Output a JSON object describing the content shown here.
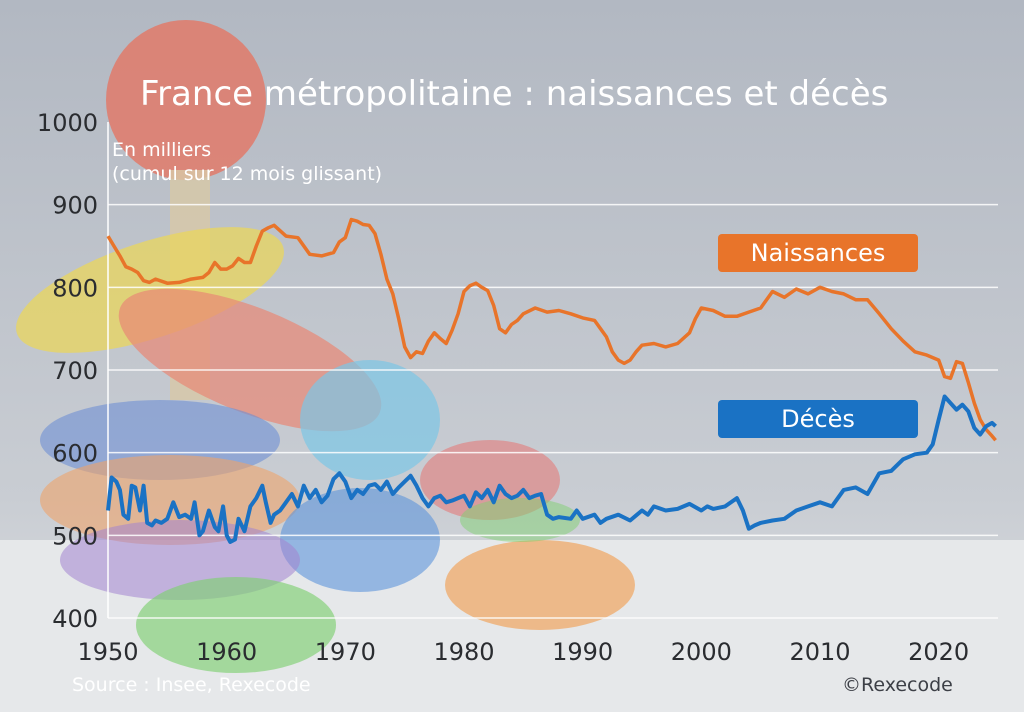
{
  "chart_data": {
    "type": "line",
    "title": "France métropolitaine : naissances et décès",
    "unit_label_line1": "En milliers",
    "unit_label_line2": "(cumul sur 12 mois glissant)",
    "xlim": [
      1950,
      2025
    ],
    "ylim": [
      400,
      1000
    ],
    "yticks": [
      1000,
      900,
      800,
      700,
      600,
      500,
      400
    ],
    "xticks": [
      1950,
      1960,
      1970,
      1980,
      1990,
      2000,
      2010,
      2020
    ],
    "grid": true,
    "series": [
      {
        "name": "Naissances",
        "color": "#e8742a",
        "points": [
          [
            1950.0,
            862
          ],
          [
            1950.5,
            850
          ],
          [
            1951.0,
            838
          ],
          [
            1951.5,
            825
          ],
          [
            1952.0,
            822
          ],
          [
            1952.5,
            818
          ],
          [
            1953.0,
            808
          ],
          [
            1953.5,
            806
          ],
          [
            1954.0,
            810
          ],
          [
            1955.0,
            805
          ],
          [
            1956.0,
            806
          ],
          [
            1957.0,
            810
          ],
          [
            1958.0,
            812
          ],
          [
            1958.5,
            818
          ],
          [
            1959.0,
            830
          ],
          [
            1959.5,
            822
          ],
          [
            1960.0,
            822
          ],
          [
            1960.5,
            826
          ],
          [
            1961.0,
            835
          ],
          [
            1961.5,
            830
          ],
          [
            1962.0,
            830
          ],
          [
            1962.5,
            850
          ],
          [
            1963.0,
            868
          ],
          [
            1963.5,
            872
          ],
          [
            1964.0,
            875
          ],
          [
            1965.0,
            862
          ],
          [
            1966.0,
            860
          ],
          [
            1967.0,
            840
          ],
          [
            1968.0,
            838
          ],
          [
            1969.0,
            842
          ],
          [
            1969.5,
            855
          ],
          [
            1970.0,
            860
          ],
          [
            1970.5,
            882
          ],
          [
            1971.0,
            880
          ],
          [
            1971.5,
            876
          ],
          [
            1972.0,
            875
          ],
          [
            1972.5,
            865
          ],
          [
            1973.0,
            840
          ],
          [
            1973.5,
            810
          ],
          [
            1974.0,
            792
          ],
          [
            1974.5,
            762
          ],
          [
            1975.0,
            728
          ],
          [
            1975.5,
            715
          ],
          [
            1976.0,
            722
          ],
          [
            1976.5,
            720
          ],
          [
            1977.0,
            735
          ],
          [
            1977.5,
            745
          ],
          [
            1978.0,
            738
          ],
          [
            1978.5,
            732
          ],
          [
            1979.0,
            748
          ],
          [
            1979.5,
            768
          ],
          [
            1980.0,
            795
          ],
          [
            1980.5,
            802
          ],
          [
            1981.0,
            805
          ],
          [
            1981.5,
            800
          ],
          [
            1982.0,
            796
          ],
          [
            1982.5,
            778
          ],
          [
            1983.0,
            750
          ],
          [
            1983.5,
            745
          ],
          [
            1984.0,
            755
          ],
          [
            1984.5,
            760
          ],
          [
            1985.0,
            768
          ],
          [
            1986.0,
            775
          ],
          [
            1987.0,
            770
          ],
          [
            1988.0,
            772
          ],
          [
            1989.0,
            768
          ],
          [
            1990.0,
            763
          ],
          [
            1991.0,
            760
          ],
          [
            1991.5,
            750
          ],
          [
            1992.0,
            740
          ],
          [
            1992.5,
            722
          ],
          [
            1993.0,
            712
          ],
          [
            1993.5,
            708
          ],
          [
            1994.0,
            712
          ],
          [
            1994.5,
            722
          ],
          [
            1995.0,
            730
          ],
          [
            1996.0,
            732
          ],
          [
            1997.0,
            728
          ],
          [
            1998.0,
            732
          ],
          [
            1999.0,
            745
          ],
          [
            1999.5,
            762
          ],
          [
            2000.0,
            775
          ],
          [
            2001.0,
            772
          ],
          [
            2002.0,
            765
          ],
          [
            2003.0,
            765
          ],
          [
            2004.0,
            770
          ],
          [
            2005.0,
            775
          ],
          [
            2006.0,
            795
          ],
          [
            2007.0,
            788
          ],
          [
            2008.0,
            798
          ],
          [
            2009.0,
            792
          ],
          [
            2010.0,
            800
          ],
          [
            2011.0,
            795
          ],
          [
            2012.0,
            792
          ],
          [
            2013.0,
            785
          ],
          [
            2014.0,
            785
          ],
          [
            2015.0,
            768
          ],
          [
            2016.0,
            750
          ],
          [
            2017.0,
            735
          ],
          [
            2018.0,
            722
          ],
          [
            2019.0,
            718
          ],
          [
            2020.0,
            712
          ],
          [
            2020.5,
            692
          ],
          [
            2021.0,
            690
          ],
          [
            2021.5,
            710
          ],
          [
            2022.0,
            708
          ],
          [
            2022.5,
            685
          ],
          [
            2023.0,
            660
          ],
          [
            2023.5,
            640
          ],
          [
            2024.0,
            628
          ],
          [
            2024.5,
            620
          ],
          [
            2024.8,
            615
          ]
        ]
      },
      {
        "name": "Décès",
        "color": "#1a72c4",
        "points": [
          [
            1950.0,
            530
          ],
          [
            1950.3,
            570
          ],
          [
            1950.7,
            565
          ],
          [
            1951.0,
            555
          ],
          [
            1951.3,
            525
          ],
          [
            1951.7,
            520
          ],
          [
            1952.0,
            560
          ],
          [
            1952.3,
            558
          ],
          [
            1952.7,
            530
          ],
          [
            1953.0,
            560
          ],
          [
            1953.3,
            515
          ],
          [
            1953.7,
            512
          ],
          [
            1954.0,
            518
          ],
          [
            1954.5,
            515
          ],
          [
            1955.0,
            520
          ],
          [
            1955.5,
            540
          ],
          [
            1956.0,
            522
          ],
          [
            1956.5,
            525
          ],
          [
            1957.0,
            520
          ],
          [
            1957.3,
            540
          ],
          [
            1957.7,
            500
          ],
          [
            1958.0,
            505
          ],
          [
            1958.5,
            530
          ],
          [
            1959.0,
            510
          ],
          [
            1959.3,
            505
          ],
          [
            1959.7,
            535
          ],
          [
            1960.0,
            500
          ],
          [
            1960.3,
            492
          ],
          [
            1960.7,
            495
          ],
          [
            1961.0,
            520
          ],
          [
            1961.5,
            505
          ],
          [
            1962.0,
            535
          ],
          [
            1962.5,
            545
          ],
          [
            1963.0,
            560
          ],
          [
            1963.3,
            540
          ],
          [
            1963.7,
            515
          ],
          [
            1964.0,
            525
          ],
          [
            1964.5,
            530
          ],
          [
            1965.0,
            540
          ],
          [
            1965.5,
            550
          ],
          [
            1966.0,
            535
          ],
          [
            1966.5,
            560
          ],
          [
            1967.0,
            545
          ],
          [
            1967.5,
            555
          ],
          [
            1968.0,
            540
          ],
          [
            1968.5,
            548
          ],
          [
            1969.0,
            568
          ],
          [
            1969.5,
            575
          ],
          [
            1970.0,
            565
          ],
          [
            1970.5,
            545
          ],
          [
            1971.0,
            555
          ],
          [
            1971.5,
            550
          ],
          [
            1972.0,
            560
          ],
          [
            1972.5,
            562
          ],
          [
            1973.0,
            555
          ],
          [
            1973.5,
            565
          ],
          [
            1974.0,
            550
          ],
          [
            1974.5,
            558
          ],
          [
            1975.0,
            565
          ],
          [
            1975.5,
            572
          ],
          [
            1976.0,
            560
          ],
          [
            1976.5,
            545
          ],
          [
            1977.0,
            535
          ],
          [
            1977.5,
            545
          ],
          [
            1978.0,
            548
          ],
          [
            1978.5,
            540
          ],
          [
            1979.0,
            542
          ],
          [
            1979.5,
            545
          ],
          [
            1980.0,
            548
          ],
          [
            1980.5,
            535
          ],
          [
            1981.0,
            552
          ],
          [
            1981.5,
            545
          ],
          [
            1982.0,
            555
          ],
          [
            1982.5,
            540
          ],
          [
            1983.0,
            560
          ],
          [
            1983.5,
            550
          ],
          [
            1984.0,
            545
          ],
          [
            1984.5,
            548
          ],
          [
            1985.0,
            555
          ],
          [
            1985.5,
            545
          ],
          [
            1986.0,
            548
          ],
          [
            1986.5,
            550
          ],
          [
            1987.0,
            525
          ],
          [
            1987.5,
            520
          ],
          [
            1988.0,
            522
          ],
          [
            1989.0,
            520
          ],
          [
            1989.5,
            530
          ],
          [
            1990.0,
            520
          ],
          [
            1991.0,
            525
          ],
          [
            1991.5,
            515
          ],
          [
            1992.0,
            520
          ],
          [
            1993.0,
            525
          ],
          [
            1994.0,
            518
          ],
          [
            1995.0,
            530
          ],
          [
            1995.5,
            525
          ],
          [
            1996.0,
            535
          ],
          [
            1997.0,
            530
          ],
          [
            1998.0,
            532
          ],
          [
            1999.0,
            538
          ],
          [
            2000.0,
            530
          ],
          [
            2000.5,
            535
          ],
          [
            2001.0,
            532
          ],
          [
            2002.0,
            535
          ],
          [
            2003.0,
            545
          ],
          [
            2003.5,
            530
          ],
          [
            2004.0,
            508
          ],
          [
            2004.5,
            512
          ],
          [
            2005.0,
            515
          ],
          [
            2006.0,
            518
          ],
          [
            2007.0,
            520
          ],
          [
            2008.0,
            530
          ],
          [
            2009.0,
            535
          ],
          [
            2010.0,
            540
          ],
          [
            2011.0,
            535
          ],
          [
            2012.0,
            555
          ],
          [
            2013.0,
            558
          ],
          [
            2014.0,
            550
          ],
          [
            2015.0,
            575
          ],
          [
            2016.0,
            578
          ],
          [
            2017.0,
            592
          ],
          [
            2018.0,
            598
          ],
          [
            2019.0,
            600
          ],
          [
            2019.5,
            610
          ],
          [
            2020.0,
            640
          ],
          [
            2020.5,
            668
          ],
          [
            2021.0,
            660
          ],
          [
            2021.5,
            652
          ],
          [
            2022.0,
            658
          ],
          [
            2022.5,
            650
          ],
          [
            2023.0,
            630
          ],
          [
            2023.5,
            622
          ],
          [
            2024.0,
            632
          ],
          [
            2024.5,
            636
          ],
          [
            2024.8,
            632
          ]
        ]
      }
    ]
  },
  "footer": {
    "source": "Source : Insee, Rexecode",
    "copyright": "©Rexecode"
  }
}
